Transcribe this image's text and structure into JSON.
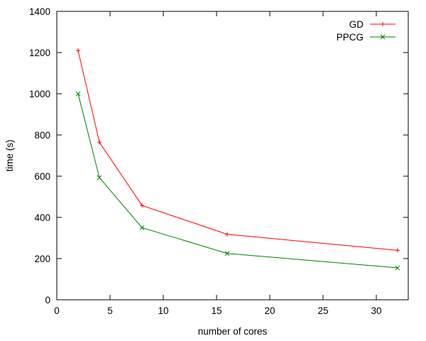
{
  "chart_data": {
    "type": "line",
    "xlabel": "number of cores",
    "ylabel": "time (s)",
    "xlim": [
      0,
      33
    ],
    "ylim": [
      0,
      1400
    ],
    "xticks": [
      0,
      5,
      10,
      15,
      20,
      25,
      30
    ],
    "yticks": [
      0,
      200,
      400,
      600,
      800,
      1000,
      1200,
      1400
    ],
    "grid": false,
    "legend_position": "top-right",
    "series": [
      {
        "name": "GD",
        "color": "#ff0000",
        "marker": "plus",
        "x": [
          2,
          4,
          8,
          16,
          32
        ],
        "y": [
          1210,
          765,
          458,
          318,
          240
        ]
      },
      {
        "name": "PPCG",
        "color": "#008000",
        "marker": "cross",
        "x": [
          2,
          4,
          8,
          16,
          32
        ],
        "y": [
          1000,
          593,
          350,
          225,
          155
        ]
      }
    ]
  }
}
